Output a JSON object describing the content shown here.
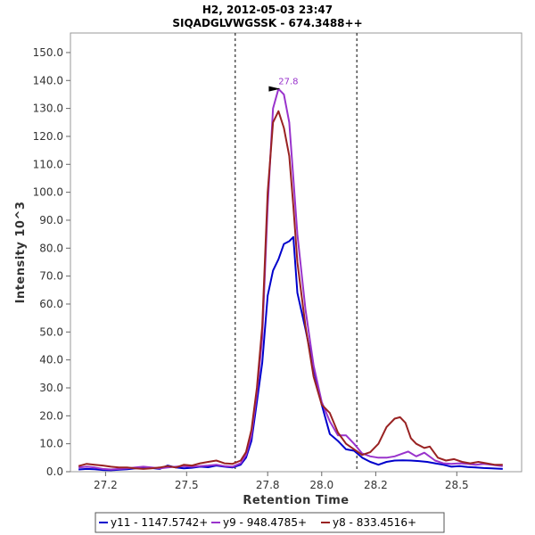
{
  "chart_data": {
    "type": "line",
    "title": "H2, 2012-05-03 23:47",
    "subtitle": "SIQADGLVWGSSK - 674.3488++",
    "xlabel": "Retention Time",
    "ylabel": "Intensity 10^3",
    "xlim": [
      27.07,
      28.74
    ],
    "ylim": [
      0,
      157
    ],
    "xticks": [
      27.2,
      27.5,
      27.8,
      28.0,
      28.2,
      28.5
    ],
    "yticks": [
      0,
      10,
      20,
      30,
      40,
      50,
      60,
      70,
      80,
      90,
      100,
      110,
      120,
      130,
      140,
      150
    ],
    "grid": false,
    "legend_position": "bottom",
    "boundaries": [
      27.68,
      28.13
    ],
    "peak_annotation": {
      "label": "27.8",
      "x": 27.87,
      "y": 137,
      "color": "#9933cc"
    },
    "series": [
      {
        "name": "y11 - 1147.5742+",
        "color": "#0000cc",
        "x": [
          27.1,
          27.13,
          27.16,
          27.19,
          27.22,
          27.25,
          27.28,
          27.31,
          27.34,
          27.37,
          27.4,
          27.43,
          27.46,
          27.49,
          27.52,
          27.55,
          27.58,
          27.61,
          27.64,
          27.67,
          27.7,
          27.72,
          27.74,
          27.76,
          27.78,
          27.8,
          27.82,
          27.84,
          27.86,
          27.88,
          27.895,
          27.91,
          27.94,
          27.97,
          28.0,
          28.03,
          28.06,
          28.09,
          28.12,
          28.15,
          28.18,
          28.21,
          28.24,
          28.27,
          28.3,
          28.33,
          28.36,
          28.39,
          28.42,
          28.45,
          28.48,
          28.51,
          28.54,
          28.57,
          28.6,
          28.63,
          28.67
        ],
        "values": [
          0.8,
          1.0,
          0.9,
          0.6,
          0.5,
          0.7,
          0.9,
          1.2,
          1.5,
          1.3,
          1.0,
          2.2,
          1.5,
          1.2,
          1.4,
          1.8,
          1.6,
          2.2,
          1.8,
          1.5,
          2.5,
          5.0,
          11,
          25,
          39,
          63,
          72,
          76,
          81.5,
          82.5,
          84,
          64,
          51,
          37,
          24,
          13.5,
          11,
          8,
          7.5,
          5.0,
          3.5,
          2.5,
          3.5,
          4.0,
          4.1,
          4.0,
          3.8,
          3.5,
          3.0,
          2.5,
          1.8,
          2.0,
          1.7,
          1.5,
          1.3,
          1.2,
          1.0
        ]
      },
      {
        "name": "y9 - 948.4785+",
        "color": "#9933cc",
        "x": [
          27.1,
          27.13,
          27.16,
          27.19,
          27.22,
          27.25,
          27.28,
          27.31,
          27.34,
          27.37,
          27.4,
          27.43,
          27.46,
          27.49,
          27.52,
          27.55,
          27.58,
          27.61,
          27.64,
          27.67,
          27.7,
          27.72,
          27.74,
          27.76,
          27.78,
          27.8,
          27.82,
          27.84,
          27.86,
          27.88,
          27.895,
          27.91,
          27.94,
          27.97,
          28.0,
          28.03,
          28.06,
          28.09,
          28.12,
          28.15,
          28.18,
          28.21,
          28.24,
          28.27,
          28.3,
          28.32,
          28.35,
          28.38,
          28.42,
          28.45,
          28.48,
          28.51,
          28.54,
          28.57,
          28.6,
          28.63,
          28.67
        ],
        "values": [
          1.5,
          1.8,
          1.5,
          1.0,
          0.8,
          1.0,
          1.2,
          1.5,
          1.8,
          1.5,
          1.2,
          1.5,
          1.8,
          2.0,
          1.8,
          2.0,
          2.2,
          2.5,
          2.0,
          1.8,
          3.0,
          6.0,
          13,
          28,
          48,
          95,
          130,
          137,
          135,
          125,
          105,
          85,
          58,
          38,
          25,
          18,
          13,
          13,
          10,
          6.5,
          5.5,
          5.0,
          5.0,
          5.5,
          6.5,
          7.2,
          5.5,
          6.8,
          4.0,
          3.0,
          2.8,
          3.0,
          2.8,
          2.5,
          2.8,
          2.5,
          2.0
        ]
      },
      {
        "name": "y8 - 833.4516+",
        "color": "#992222",
        "x": [
          27.1,
          27.13,
          27.16,
          27.19,
          27.22,
          27.25,
          27.28,
          27.31,
          27.34,
          27.37,
          27.4,
          27.43,
          27.46,
          27.49,
          27.52,
          27.55,
          27.58,
          27.61,
          27.64,
          27.67,
          27.7,
          27.72,
          27.74,
          27.76,
          27.78,
          27.8,
          27.82,
          27.84,
          27.86,
          27.88,
          27.895,
          27.91,
          27.94,
          27.97,
          28.0,
          28.03,
          28.06,
          28.09,
          28.12,
          28.15,
          28.18,
          28.21,
          28.24,
          28.27,
          28.29,
          28.31,
          28.33,
          28.35,
          28.38,
          28.4,
          28.43,
          28.46,
          28.49,
          28.52,
          28.55,
          28.58,
          28.61,
          28.64,
          28.67
        ],
        "values": [
          2.0,
          2.8,
          2.5,
          2.2,
          1.8,
          1.5,
          1.5,
          1.2,
          1.0,
          1.2,
          1.5,
          2.0,
          1.5,
          2.5,
          2.2,
          3.0,
          3.5,
          4.0,
          3.0,
          2.8,
          4.0,
          7.0,
          15,
          30,
          52,
          100,
          125,
          129,
          123,
          113,
          95,
          75,
          52,
          34,
          24,
          21,
          14,
          10,
          8,
          6,
          7,
          10,
          16,
          19,
          19.5,
          17.5,
          12,
          10,
          8.5,
          9,
          5,
          4,
          4.5,
          3.5,
          3.0,
          3.5,
          3.0,
          2.5,
          2.5
        ]
      }
    ]
  }
}
